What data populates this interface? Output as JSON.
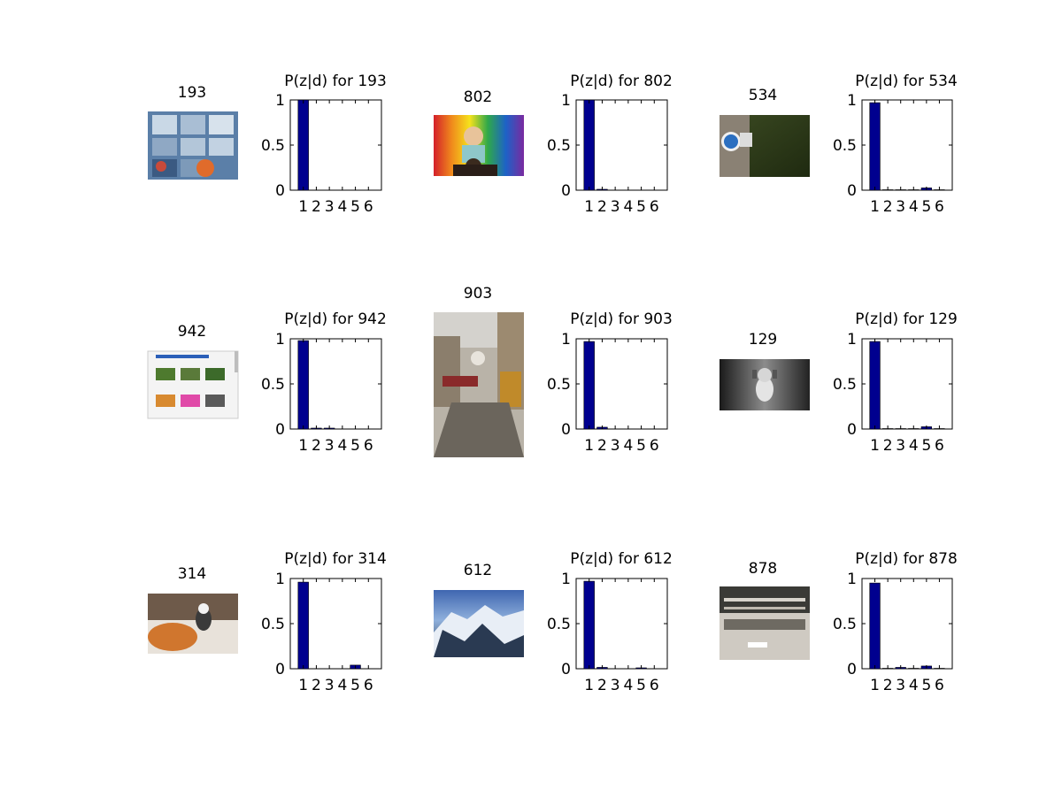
{
  "figure": {
    "background": "#ffffff",
    "bar_color": "#00008f"
  },
  "panels": [
    {
      "id": "193",
      "image_label": "193",
      "chart_title": "P(z|d) for 193",
      "image_desc": "window-panes",
      "chart_data": {
        "type": "bar",
        "categories": [
          "1",
          "2",
          "3",
          "4",
          "5",
          "6"
        ],
        "values": [
          1.0,
          0.0,
          0.0,
          0.0,
          0.0,
          0.0
        ],
        "ylim": [
          0,
          1
        ],
        "yticks": [
          "0",
          "0.5",
          "1"
        ],
        "xlabel": "",
        "ylabel": ""
      }
    },
    {
      "id": "802",
      "image_label": "802",
      "chart_title": "P(z|d) for 802",
      "image_desc": "rainbow-umbrella",
      "chart_data": {
        "type": "bar",
        "categories": [
          "1",
          "2",
          "3",
          "4",
          "5",
          "6"
        ],
        "values": [
          1.0,
          0.01,
          0.0,
          0.0,
          0.0,
          0.0
        ],
        "ylim": [
          0,
          1
        ],
        "yticks": [
          "0",
          "0.5",
          "1"
        ],
        "xlabel": "",
        "ylabel": ""
      }
    },
    {
      "id": "534",
      "image_label": "534",
      "chart_title": "P(z|d) for 534",
      "image_desc": "sign-on-tree",
      "chart_data": {
        "type": "bar",
        "categories": [
          "1",
          "2",
          "3",
          "4",
          "5",
          "6"
        ],
        "values": [
          0.97,
          0.005,
          0.005,
          0.005,
          0.025,
          0.005
        ],
        "ylim": [
          0,
          1
        ],
        "yticks": [
          "0",
          "0.5",
          "1"
        ],
        "xlabel": "",
        "ylabel": ""
      }
    },
    {
      "id": "942",
      "image_label": "942",
      "chart_title": "P(z|d) for 942",
      "image_desc": "web-page-screenshot",
      "chart_data": {
        "type": "bar",
        "categories": [
          "1",
          "2",
          "3",
          "4",
          "5",
          "6"
        ],
        "values": [
          0.98,
          0.01,
          0.01,
          0.0,
          0.0,
          0.0
        ],
        "ylim": [
          0,
          1
        ],
        "yticks": [
          "0",
          "0.5",
          "1"
        ],
        "xlabel": "",
        "ylabel": ""
      }
    },
    {
      "id": "903",
      "image_label": "903",
      "chart_title": "P(z|d) for 903",
      "image_desc": "street-scene",
      "chart_data": {
        "type": "bar",
        "categories": [
          "1",
          "2",
          "3",
          "4",
          "5",
          "6"
        ],
        "values": [
          0.97,
          0.02,
          0.0,
          0.0,
          0.0,
          0.0
        ],
        "ylim": [
          0,
          1
        ],
        "yticks": [
          "0",
          "0.5",
          "1"
        ],
        "xlabel": "",
        "ylabel": ""
      }
    },
    {
      "id": "129",
      "image_label": "129",
      "chart_title": "P(z|d) for 129",
      "image_desc": "dog-black-and-white",
      "chart_data": {
        "type": "bar",
        "categories": [
          "1",
          "2",
          "3",
          "4",
          "5",
          "6"
        ],
        "values": [
          0.97,
          0.005,
          0.005,
          0.005,
          0.025,
          0.005
        ],
        "ylim": [
          0,
          1
        ],
        "yticks": [
          "0",
          "0.5",
          "1"
        ],
        "xlabel": "",
        "ylabel": ""
      }
    },
    {
      "id": "314",
      "image_label": "314",
      "chart_title": "P(z|d) for 314",
      "image_desc": "bathtub-toy",
      "chart_data": {
        "type": "bar",
        "categories": [
          "1",
          "2",
          "3",
          "4",
          "5",
          "6"
        ],
        "values": [
          0.96,
          0.0,
          0.0,
          0.0,
          0.04,
          0.0
        ],
        "ylim": [
          0,
          1
        ],
        "yticks": [
          "0",
          "0.5",
          "1"
        ],
        "xlabel": "",
        "ylabel": ""
      }
    },
    {
      "id": "612",
      "image_label": "612",
      "chart_title": "P(z|d) for 612",
      "image_desc": "snowy-mountains",
      "chart_data": {
        "type": "bar",
        "categories": [
          "1",
          "2",
          "3",
          "4",
          "5",
          "6"
        ],
        "values": [
          0.97,
          0.015,
          0.0,
          0.0,
          0.01,
          0.0
        ],
        "ylim": [
          0,
          1
        ],
        "yticks": [
          "0",
          "0.5",
          "1"
        ],
        "xlabel": "",
        "ylabel": ""
      }
    },
    {
      "id": "878",
      "image_label": "878",
      "chart_title": "P(z|d) for 878",
      "image_desc": "empty-hall",
      "chart_data": {
        "type": "bar",
        "categories": [
          "1",
          "2",
          "3",
          "4",
          "5",
          "6"
        ],
        "values": [
          0.95,
          0.005,
          0.015,
          0.005,
          0.03,
          0.005
        ],
        "ylim": [
          0,
          1
        ],
        "yticks": [
          "0",
          "0.5",
          "1"
        ],
        "xlabel": "",
        "ylabel": ""
      }
    }
  ]
}
